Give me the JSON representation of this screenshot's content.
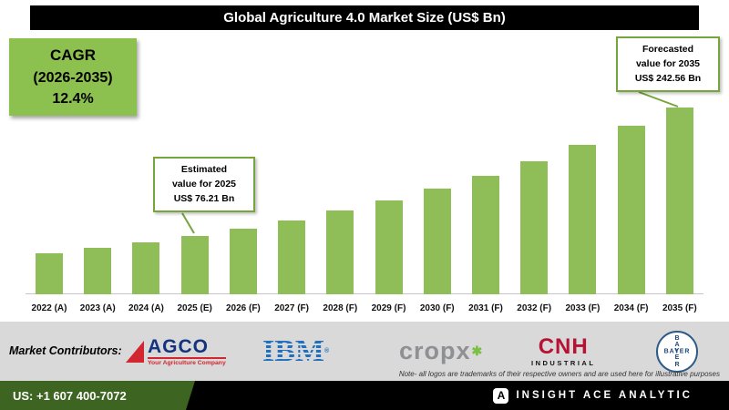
{
  "title": "Global Agriculture 4.0 Market Size (US$ Bn)",
  "cagr": {
    "line1": "CAGR",
    "line2": "(2026-2035)",
    "line3": "12.4%"
  },
  "callouts": {
    "estimated": {
      "line1": "Estimated",
      "line2": "value for 2025",
      "line3": "US$ 76.21 Bn"
    },
    "forecast": {
      "line1": "Forecasted",
      "line2": "value for 2035",
      "line3": "US$ 242.56 Bn"
    }
  },
  "chart_data": {
    "type": "bar",
    "title": "Global Agriculture 4.0 Market Size (US$ Bn)",
    "categories": [
      "2022 (A)",
      "2023 (A)",
      "2024 (A)",
      "2025 (E)",
      "2026 (F)",
      "2027 (F)",
      "2028 (F)",
      "2029 (F)",
      "2030 (F)",
      "2031 (F)",
      "2032 (F)",
      "2033 (F)",
      "2034 (F)",
      "2035 (F)"
    ],
    "values": [
      53.7,
      60.4,
      67.8,
      76.21,
      85.7,
      96.3,
      108.2,
      121.6,
      136.7,
      153.7,
      172.7,
      194.1,
      218.2,
      242.56
    ],
    "xlabel": "",
    "ylabel": "",
    "ylim": [
      0,
      260
    ],
    "grid": false,
    "legend": false,
    "cagr_2026_2035_pct": 12.4,
    "annotations": [
      {
        "text": "Estimated value for 2025 US$ 76.21 Bn",
        "target": "2025 (E)",
        "value": 76.21
      },
      {
        "text": "Forecasted value for 2035 US$ 242.56 Bn",
        "target": "2035 (F)",
        "value": 242.56
      }
    ]
  },
  "contributors": {
    "label": "Market Contributors:",
    "note": "Note- all logos are trademarks of their respective owners and are used here for illustrative purposes",
    "agco": {
      "name": "AGCO",
      "tagline": "Your Agriculture Company"
    },
    "ibm": {
      "name": "IBM",
      "reg": "®"
    },
    "cropx": {
      "name": "cropx",
      "mark": "✱"
    },
    "cnh": {
      "name": "CNH",
      "sub": "INDUSTRIAL"
    },
    "bayer": {
      "name": "BAYER"
    }
  },
  "footer": {
    "phone": "US: +1 607 400-7072",
    "brand": "INSIGHT ACE ANALYTIC",
    "brand_icon_letter": "A"
  },
  "theme": {
    "bar": "#8fbd57",
    "accent": "#76a43d",
    "cagr": "#8cc04f",
    "footerGreen": "#3d6420",
    "strip": "#d9d9d9",
    "titleBg": "#000000"
  }
}
